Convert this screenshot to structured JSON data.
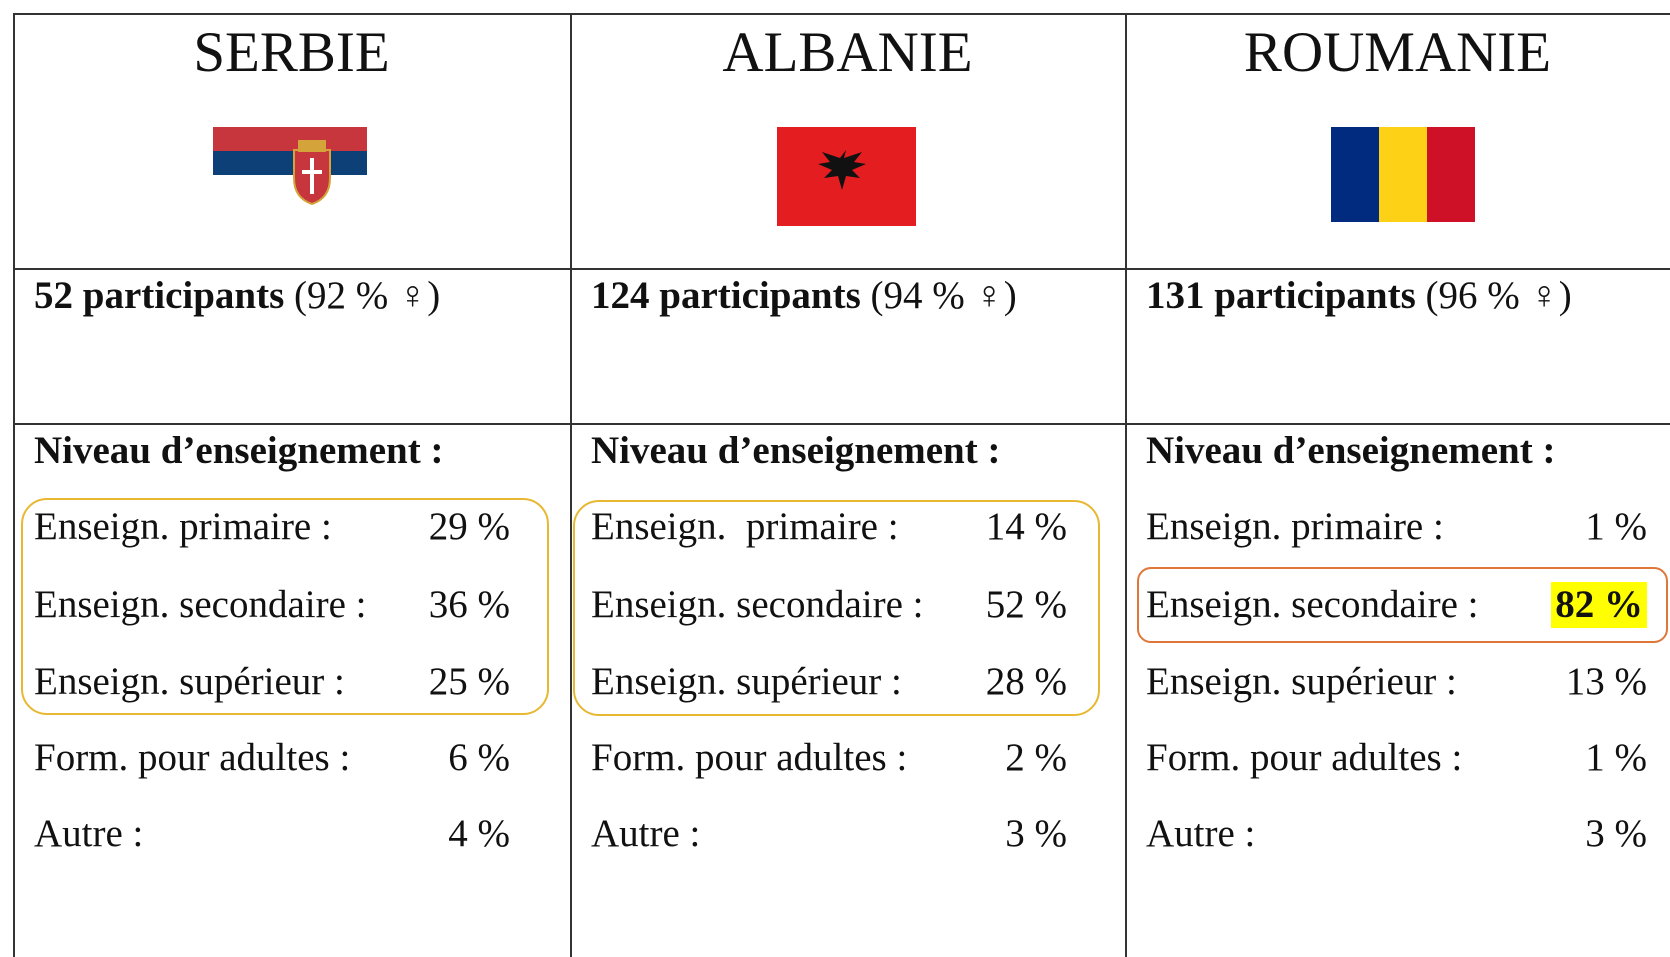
{
  "table": {
    "columns": [
      {
        "country": "SERBIE",
        "participants": "52 participants",
        "share": "(92 % ♀)",
        "heading": "Niveau d’enseignement :",
        "levels": [
          {
            "label": "Enseign. primaire :",
            "value": "29 %"
          },
          {
            "label": "Enseign. secondaire :",
            "value": "36 %"
          },
          {
            "label": "Enseign. supérieur :",
            "value": "25 %"
          },
          {
            "label": "Form. pour adultes :",
            "value": "6 %"
          },
          {
            "label": "Autre :",
            "value": "4 %"
          }
        ]
      },
      {
        "country": "ALBANIE",
        "participants": "124 participants",
        "share": "(94 % ♀)",
        "heading": "Niveau d’enseignement :",
        "levels": [
          {
            "label": "Enseign.  primaire :",
            "value": "14 %"
          },
          {
            "label": "Enseign. secondaire :",
            "value": "52 %"
          },
          {
            "label": "Enseign. supérieur :",
            "value": "28 %"
          },
          {
            "label": "Form. pour adultes :",
            "value": "2 %"
          },
          {
            "label": "Autre :",
            "value": "3 %"
          }
        ]
      },
      {
        "country": "ROUMANIE",
        "participants": "131 participants",
        "share": "(96 % ♀)",
        "heading": "Niveau d’enseignement :",
        "levels": [
          {
            "label": "Enseign. primaire :",
            "value": "1 %"
          },
          {
            "label": "Enseign. secondaire :",
            "value": "82 %"
          },
          {
            "label": "Enseign. supérieur :",
            "value": "13 %"
          },
          {
            "label": "Form. pour adultes :",
            "value": "1 %"
          },
          {
            "label": "Autre :",
            "value": "3 %"
          }
        ]
      }
    ]
  }
}
